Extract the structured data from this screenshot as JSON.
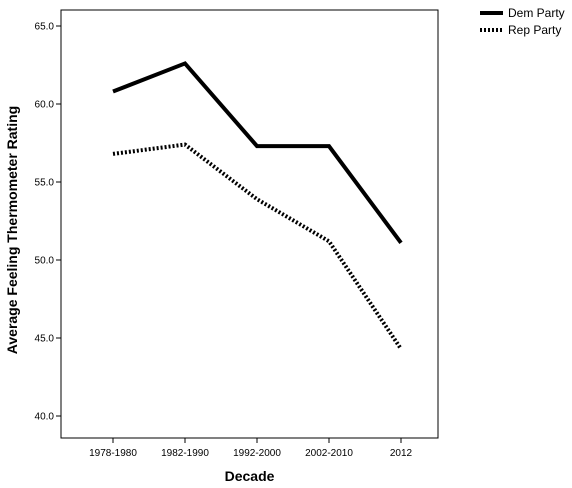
{
  "chart_data": {
    "type": "line",
    "categories": [
      "1978-1980",
      "1982-1990",
      "1992-2000",
      "2002-2010",
      "2012"
    ],
    "series": [
      {
        "name": "Dem Party",
        "values": [
          60.8,
          62.6,
          57.3,
          57.3,
          51.1
        ],
        "style": "solid",
        "color": "#000000"
      },
      {
        "name": "Rep Party",
        "values": [
          56.8,
          57.4,
          53.9,
          51.2,
          44.3
        ],
        "style": "dotted",
        "color": "#000000"
      }
    ],
    "xlabel": "Decade",
    "ylabel": "Average Feeling Thermometer Rating",
    "ylim": [
      40.0,
      65.0
    ],
    "yticks": [
      "40.0",
      "45.0",
      "50.0",
      "55.0",
      "60.0",
      "65.0"
    ],
    "grid": false,
    "legend_position": "top-right-outside"
  }
}
